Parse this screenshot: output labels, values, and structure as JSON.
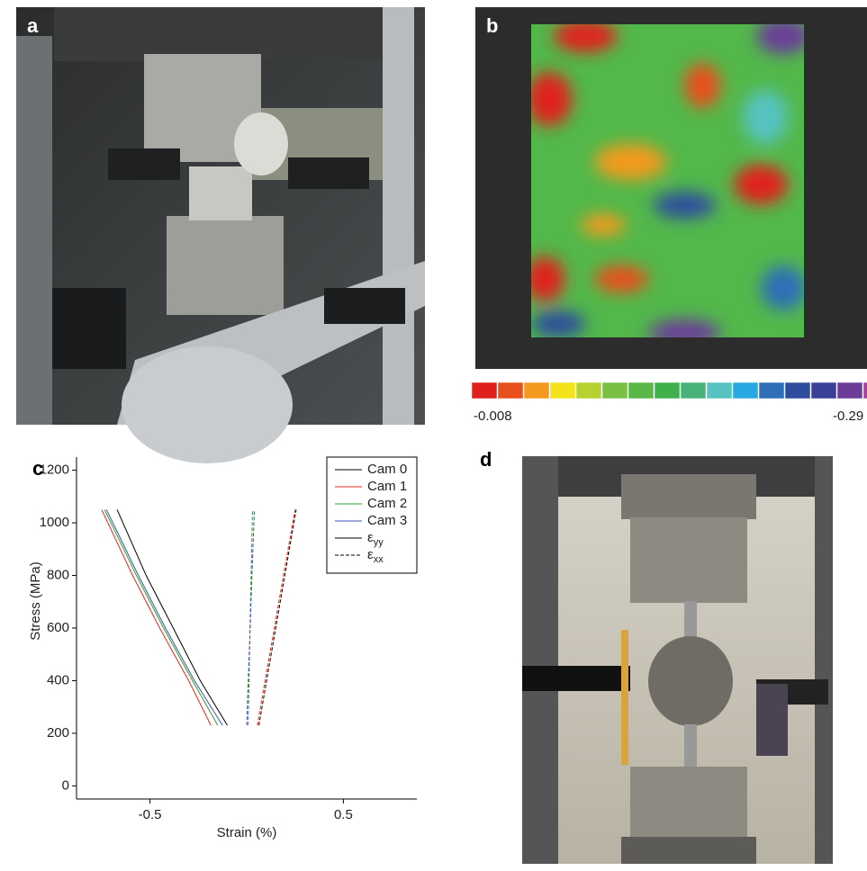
{
  "panels": {
    "a": "a",
    "b": "b",
    "c": "c",
    "d": "d"
  },
  "colorbar": {
    "min_label": "-0.008",
    "max_label": "-0.29",
    "colors": [
      "#e0201d",
      "#e8501e",
      "#f39a1f",
      "#f2e31a",
      "#b6d231",
      "#7ac143",
      "#5bb848",
      "#3fb04b",
      "#48b27a",
      "#57c3c2",
      "#29a9e1",
      "#2f6fb7",
      "#2e4d9d",
      "#3a3f97",
      "#6b3d98",
      "#a64398"
    ]
  },
  "chart_data": {
    "type": "line",
    "xlabel": "Strain (%)",
    "ylabel": "Stress (MPa)",
    "xlim": [
      -0.88,
      0.88
    ],
    "ylim": [
      -50,
      1250
    ],
    "xticks": [
      -0.5,
      0.5
    ],
    "yticks": [
      0,
      200,
      400,
      600,
      800,
      1000,
      1200
    ],
    "legend": "upper right",
    "line_styles": [
      {
        "symbol": "ε",
        "subscript": "yy",
        "dashed": false
      },
      {
        "symbol": "ε",
        "subscript": "xx",
        "dashed": true
      }
    ],
    "series": [
      {
        "name": "Cam 0",
        "color": "#000000",
        "yy": {
          "x": [
            -0.1,
            -0.24,
            -0.38,
            -0.52,
            -0.67
          ],
          "values": [
            230,
            400,
            600,
            800,
            1050
          ]
        },
        "xx": {
          "x": [
            0.063,
            0.103,
            0.15,
            0.197,
            0.256
          ],
          "values": [
            230,
            400,
            600,
            800,
            1050
          ]
        }
      },
      {
        "name": "Cam 1",
        "color": "#e8261c",
        "yy": {
          "x": [
            -0.185,
            -0.3,
            -0.45,
            -0.59,
            -0.75
          ],
          "values": [
            230,
            400,
            600,
            800,
            1050
          ]
        },
        "xx": {
          "x": [
            0.055,
            0.095,
            0.143,
            0.19,
            0.25
          ],
          "values": [
            230,
            400,
            600,
            800,
            1050
          ]
        }
      },
      {
        "name": "Cam 2",
        "color": "#2ca02c",
        "yy": {
          "x": [
            -0.15,
            -0.28,
            -0.43,
            -0.57,
            -0.735
          ],
          "values": [
            230,
            400,
            600,
            800,
            1050
          ]
        },
        "xx": {
          "x": [
            0.007,
            0.012,
            0.017,
            0.023,
            0.03
          ],
          "values": [
            230,
            400,
            600,
            800,
            1050
          ]
        }
      },
      {
        "name": "Cam 3",
        "color": "#3f4fbf",
        "yy": {
          "x": [
            -0.125,
            -0.27,
            -0.42,
            -0.56,
            -0.725
          ],
          "values": [
            230,
            400,
            600,
            800,
            1050
          ]
        },
        "xx": {
          "x": [
            0.0,
            0.008,
            0.018,
            0.027,
            0.04
          ],
          "values": [
            230,
            400,
            600,
            800,
            1050
          ]
        }
      }
    ]
  }
}
